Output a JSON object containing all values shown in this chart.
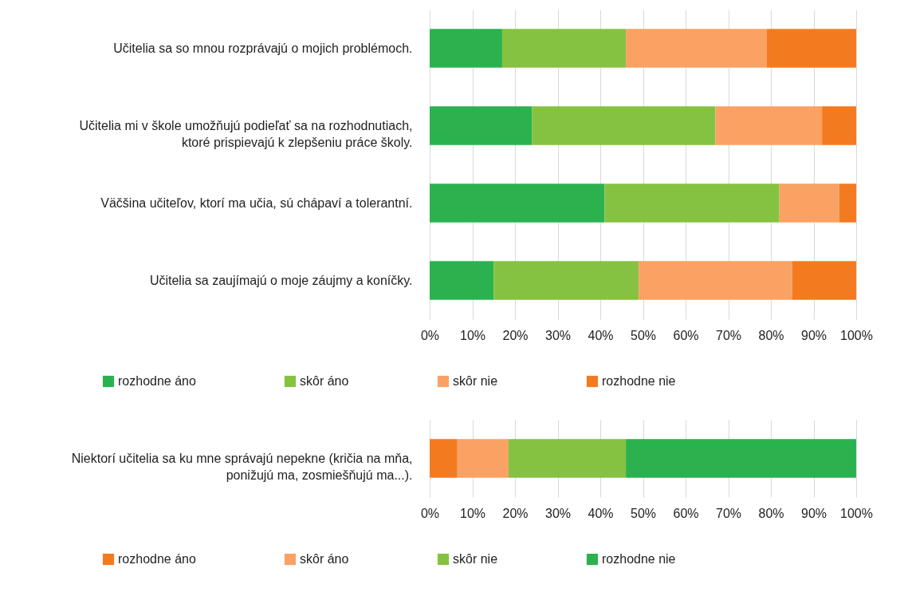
{
  "chart_data": [
    {
      "type": "bar",
      "orientation": "horizontal",
      "stacked": true,
      "categories": [
        "Učitelia sa so mnou rozprávajú o mojich problémoch.",
        "Učitelia mi v škole umožňujú podieľať sa na rozhodnutiach, ktoré prispievajú k zlepšeniu práce školy.",
        "Väčšina učiteľov, ktorí ma učia, sú chápaví a tolerantní.",
        "Učitelia sa zaujímajú o moje záujmy a koníčky."
      ],
      "series": [
        {
          "name": "rozhodne áno",
          "color": "#2bb24f",
          "values": [
            17,
            24,
            41,
            15
          ]
        },
        {
          "name": "skôr áno",
          "color": "#86c241",
          "values": [
            29,
            43,
            41,
            34
          ]
        },
        {
          "name": "skôr nie",
          "color": "#f9a263",
          "values": [
            33,
            25,
            14,
            36
          ]
        },
        {
          "name": "rozhodne nie",
          "color": "#f47a20",
          "values": [
            21,
            8,
            4,
            15
          ]
        }
      ],
      "xlim": [
        0,
        100
      ],
      "xticks": [
        {
          "value": 0,
          "label": "0%"
        },
        {
          "value": 10,
          "label": "10%"
        },
        {
          "value": 20,
          "label": "20%"
        },
        {
          "value": 30,
          "label": "30%"
        },
        {
          "value": 40,
          "label": "40%"
        },
        {
          "value": 50,
          "label": "50%"
        },
        {
          "value": 60,
          "label": "60%"
        },
        {
          "value": 70,
          "label": "70%"
        },
        {
          "value": 80,
          "label": "80%"
        },
        {
          "value": 90,
          "label": "90%"
        },
        {
          "value": 100,
          "label": "100%"
        }
      ],
      "grid": "x",
      "legend": "bottom"
    },
    {
      "type": "bar",
      "orientation": "horizontal",
      "stacked": true,
      "categories": [
        "Niektorí učitelia sa ku mne správajú nepekne (kričia na mňa, ponižujú ma, zosmiešňujú ma...)."
      ],
      "series": [
        {
          "name": "rozhodne áno",
          "color": "#f47a20",
          "values": [
            6.5
          ]
        },
        {
          "name": "skôr áno",
          "color": "#f9a263",
          "values": [
            12
          ]
        },
        {
          "name": "skôr nie",
          "color": "#86c241",
          "values": [
            27.5
          ]
        },
        {
          "name": "rozhodne nie",
          "color": "#2bb24f",
          "values": [
            54
          ]
        }
      ],
      "xlim": [
        0,
        100
      ],
      "xticks": [
        {
          "value": 0,
          "label": "0%"
        },
        {
          "value": 10,
          "label": "10%"
        },
        {
          "value": 20,
          "label": "20%"
        },
        {
          "value": 30,
          "label": "30%"
        },
        {
          "value": 40,
          "label": "40%"
        },
        {
          "value": 50,
          "label": "50%"
        },
        {
          "value": 60,
          "label": "60%"
        },
        {
          "value": 70,
          "label": "70%"
        },
        {
          "value": 80,
          "label": "80%"
        },
        {
          "value": 90,
          "label": "90%"
        },
        {
          "value": 100,
          "label": "100%"
        }
      ],
      "grid": "x",
      "legend": "bottom"
    }
  ]
}
